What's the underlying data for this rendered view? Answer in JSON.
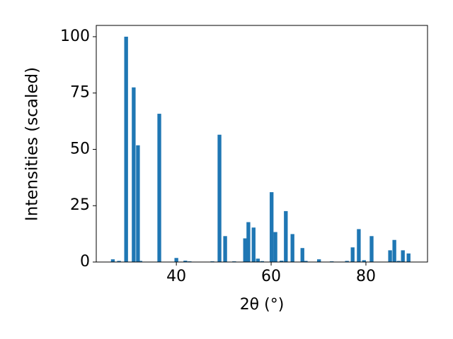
{
  "chart_data": {
    "type": "bar",
    "xlabel": "2θ (°)",
    "ylabel": "Intensities (scaled)",
    "x": [
      26.6,
      27.9,
      29.4,
      31.0,
      31.9,
      32.4,
      36.4,
      40.0,
      41.9,
      42.8,
      47.6,
      49.1,
      50.3,
      52.2,
      54.5,
      55.2,
      56.3,
      57.2,
      58.1,
      60.1,
      60.9,
      62.2,
      63.1,
      64.5,
      66.6,
      67.3,
      70.1,
      72.8,
      76.0,
      77.2,
      78.5,
      79.6,
      81.2,
      85.1,
      86.0,
      86.9,
      87.8,
      89.0
    ],
    "values": [
      1.2,
      0.5,
      100,
      77.5,
      51.8,
      0.5,
      65.8,
      1.8,
      0.6,
      0.3,
      0.3,
      56.5,
      11.5,
      0.3,
      10.5,
      17.7,
      15.3,
      1.5,
      0.4,
      31,
      13.3,
      0.6,
      22.6,
      12.4,
      6.2,
      0.5,
      1.2,
      0.3,
      0.5,
      6.5,
      14.6,
      0.8,
      11.5,
      5.2,
      9.8,
      0.5,
      5.2,
      3.8
    ],
    "color": "#1f77b4",
    "xlim": [
      23.1,
      93.0
    ],
    "xticks": [
      40,
      60,
      80
    ],
    "ylim": [
      0,
      105
    ],
    "yticks": [
      0,
      25,
      50,
      75,
      100
    ]
  }
}
